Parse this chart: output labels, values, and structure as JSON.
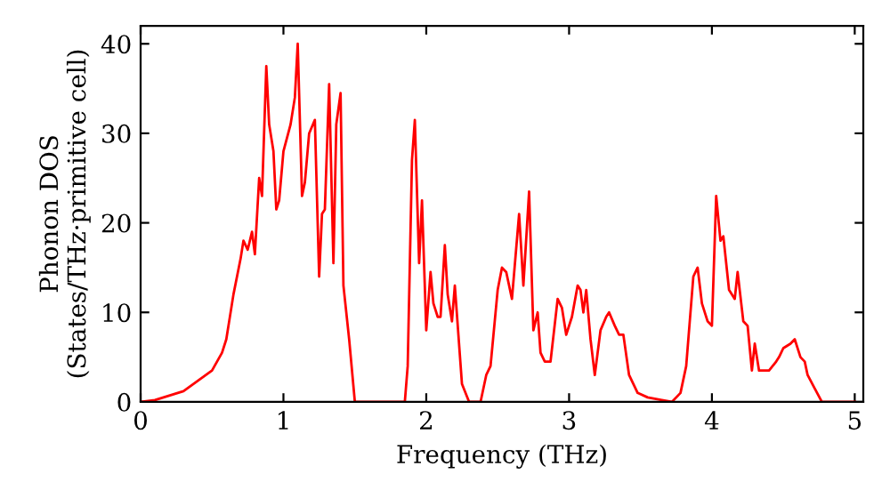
{
  "chart_data": {
    "type": "line",
    "xlabel": "Frequency (THz)",
    "ylabel": "Phonon DOS\n(States/THz·primitive cell)",
    "xlim": [
      0,
      5.06
    ],
    "ylim": [
      0,
      42
    ],
    "xticks": [
      0,
      1,
      2,
      3,
      4,
      5
    ],
    "yticks": [
      0,
      10,
      20,
      30,
      40
    ],
    "grid": false,
    "series": [
      {
        "color": "#ff0000",
        "x": [
          0,
          0.1,
          0.3,
          0.5,
          0.57,
          0.6,
          0.65,
          0.7,
          0.72,
          0.75,
          0.78,
          0.8,
          0.83,
          0.85,
          0.88,
          0.9,
          0.93,
          0.95,
          0.97,
          1.0,
          1.05,
          1.08,
          1.1,
          1.13,
          1.15,
          1.18,
          1.22,
          1.25,
          1.27,
          1.29,
          1.32,
          1.35,
          1.37,
          1.4,
          1.42,
          1.46,
          1.5,
          1.85,
          1.87,
          1.9,
          1.92,
          1.95,
          1.97,
          2.0,
          2.03,
          2.05,
          2.08,
          2.1,
          2.13,
          2.15,
          2.18,
          2.2,
          2.25,
          2.3,
          2.38,
          2.42,
          2.45,
          2.5,
          2.53,
          2.56,
          2.6,
          2.65,
          2.68,
          2.72,
          2.75,
          2.78,
          2.8,
          2.83,
          2.87,
          2.92,
          2.95,
          2.98,
          3.02,
          3.06,
          3.08,
          3.1,
          3.12,
          3.15,
          3.18,
          3.22,
          3.26,
          3.28,
          3.32,
          3.35,
          3.38,
          3.42,
          3.48,
          3.55,
          3.65,
          3.72,
          3.78,
          3.82,
          3.87,
          3.9,
          3.93,
          3.97,
          4.0,
          4.03,
          4.06,
          4.08,
          4.12,
          4.16,
          4.18,
          4.22,
          4.25,
          4.28,
          4.3,
          4.33,
          4.4,
          4.45,
          4.47,
          4.5,
          4.55,
          4.58,
          4.62,
          4.65,
          4.67,
          4.72,
          4.77,
          5.0
        ],
        "values": [
          0,
          0.2,
          1.2,
          3.5,
          5.5,
          7,
          12,
          16,
          18,
          17,
          19,
          16.5,
          25,
          23,
          37.5,
          31,
          28,
          21.5,
          22.5,
          28,
          31,
          34,
          40,
          23,
          24.5,
          30,
          31.5,
          14,
          21,
          21.5,
          35.5,
          15.5,
          31,
          34.5,
          13,
          7,
          0,
          0,
          4,
          27,
          31.5,
          15.5,
          22.5,
          8,
          14.5,
          11,
          9.5,
          9.5,
          17.5,
          12,
          9,
          13,
          2,
          0,
          0,
          3,
          4,
          12.5,
          15,
          14.5,
          11.5,
          21,
          13,
          23.5,
          8,
          10,
          5.5,
          4.5,
          4.5,
          11.5,
          10.5,
          7.5,
          9.5,
          13,
          12.5,
          10,
          12.5,
          7,
          3,
          8,
          9.5,
          10,
          8.5,
          7.5,
          7.5,
          3,
          1,
          0.5,
          0.2,
          0,
          1,
          4,
          14,
          15,
          11,
          9,
          8.5,
          23,
          18,
          18.5,
          12.5,
          11.5,
          14.5,
          9,
          8.5,
          3.5,
          6.5,
          3.5,
          3.5,
          4.5,
          5,
          6,
          6.5,
          7,
          5,
          4.5,
          3,
          1.5,
          0,
          0
        ]
      }
    ]
  }
}
